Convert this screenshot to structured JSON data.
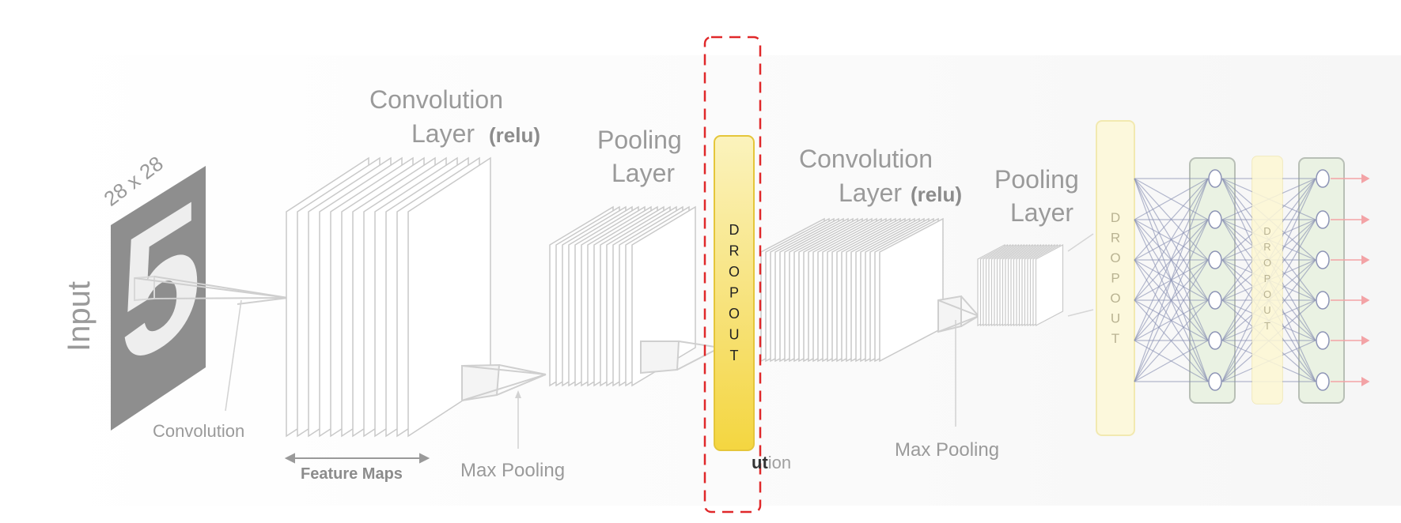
{
  "input": {
    "label": "Input",
    "size_label": "28 x 28",
    "digit": "5"
  },
  "conv1": {
    "title_line1": "Convolution",
    "title_line2": "Layer",
    "activation": "(relu)",
    "op_label": "Convolution",
    "feature_maps_label": "Feature Maps"
  },
  "pool1": {
    "title_line1": "Pooling",
    "title_line2": "Layer",
    "op_label": "Max Pooling"
  },
  "dropout_highlight": {
    "letters": [
      "D",
      "R",
      "O",
      "P",
      "O",
      "U",
      "T"
    ],
    "fragment_dark": "ut",
    "fragment_light": "ion"
  },
  "conv2": {
    "title_line1": "Convolution",
    "title_line2": "Layer",
    "activation": "(relu)"
  },
  "pool2": {
    "title_line1": "Pooling",
    "title_line2": "Layer",
    "op_label": "Max Pooling"
  },
  "dropout_large": {
    "letters": [
      "D",
      "R",
      "O",
      "P",
      "O",
      "U",
      "T"
    ]
  },
  "dropout_small": {
    "letters": [
      "D",
      "R",
      "O",
      "P",
      "O",
      "U",
      "T"
    ]
  },
  "colors": {
    "highlight_box": "#e0282a",
    "dropout_fill": "#f6dd52",
    "dropout_pale": "#fbf6d8",
    "dense_fill": "#e8f1e1",
    "network_line": "#8c93b5"
  }
}
